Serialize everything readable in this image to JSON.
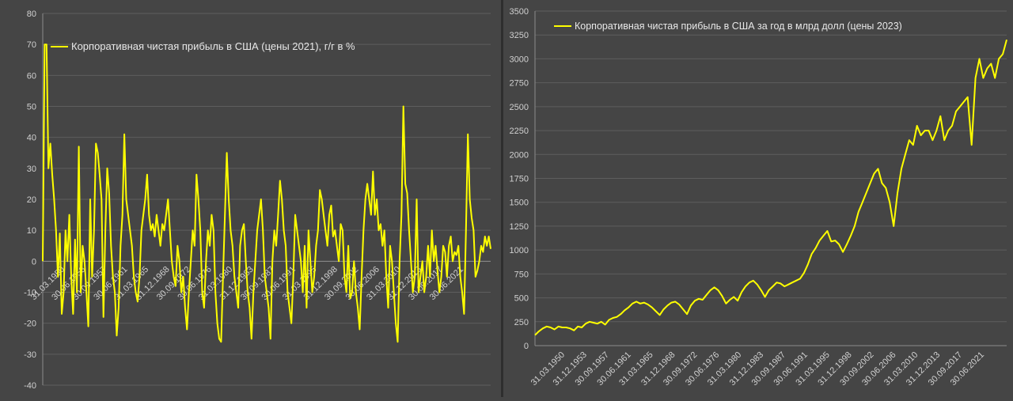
{
  "chart_data": [
    {
      "type": "line",
      "title": "",
      "legend": {
        "position": "top-left",
        "label": "Корпоративная чистая прибыль в США (цены 2021), г/г в %"
      },
      "ylim": [
        -40,
        80
      ],
      "yticks": [
        80,
        70,
        60,
        50,
        40,
        30,
        20,
        10,
        0,
        -10,
        -20,
        -30,
        -40
      ],
      "xtick_labels": [
        "31.03.1950",
        "30.06.1953",
        "30.09.1957",
        "30.06.1961",
        "31.03.1965",
        "31.12.1968",
        "30.09.1972",
        "30.06.1976",
        "31.03.1980",
        "31.12.1983",
        "30.09.1987",
        "30.06.1991",
        "31.03.1995",
        "31.12.1998",
        "30.09.2002",
        "30.06.2006",
        "31.03.2010",
        "31.12.2013",
        "30.09.2017",
        "30.06.2021"
      ],
      "color": "#ffff00",
      "series": [
        {
          "x_range": [
            1948,
            2024
          ],
          "values": [
            0,
            70,
            70,
            30,
            38,
            28,
            20,
            10,
            -5,
            9,
            -17,
            -10,
            10,
            0,
            15,
            -5,
            -17,
            7,
            -10,
            37,
            -10,
            5,
            0,
            -10,
            -21,
            20,
            -5,
            10,
            38,
            35,
            28,
            20,
            -18,
            10,
            30,
            22,
            5,
            -5,
            -10,
            -24,
            -15,
            5,
            15,
            41,
            20,
            15,
            10,
            5,
            -5,
            -10,
            -13,
            -5,
            10,
            15,
            20,
            28,
            15,
            10,
            12,
            8,
            15,
            10,
            5,
            12,
            10,
            15,
            20,
            10,
            0,
            -5,
            -8,
            5,
            0,
            -10,
            -5,
            -15,
            -22,
            -10,
            0,
            10,
            5,
            28,
            20,
            10,
            -10,
            -15,
            0,
            10,
            5,
            15,
            10,
            -10,
            -20,
            -25,
            -26,
            -5,
            15,
            35,
            20,
            10,
            5,
            -5,
            -10,
            -15,
            5,
            10,
            12,
            0,
            -10,
            -15,
            -25,
            -10,
            0,
            10,
            15,
            20,
            10,
            -5,
            -10,
            -15,
            -25,
            0,
            10,
            5,
            15,
            26,
            20,
            10,
            5,
            -10,
            -15,
            -20,
            -5,
            15,
            10,
            5,
            0,
            -10,
            5,
            -15,
            10,
            0,
            -10,
            -5,
            5,
            10,
            23,
            20,
            15,
            10,
            5,
            15,
            18,
            8,
            10,
            5,
            0,
            12,
            10,
            -5,
            -10,
            5,
            -12,
            -10,
            0,
            -10,
            -15,
            -22,
            -5,
            10,
            20,
            25,
            20,
            15,
            29,
            15,
            20,
            10,
            12,
            5,
            10,
            -5,
            -15,
            5,
            0,
            -10,
            -20,
            -26,
            0,
            15,
            50,
            25,
            22,
            10,
            0,
            -10,
            -5,
            20,
            -10,
            -5,
            0,
            -10,
            -5,
            5,
            -5,
            10,
            0,
            5,
            -3,
            -10,
            -5,
            5,
            3,
            -5,
            5,
            8,
            0,
            3,
            2,
            5,
            -5,
            -10,
            -17,
            10,
            41,
            20,
            14,
            10,
            -5,
            -3,
            0,
            5,
            3,
            8,
            5,
            8,
            4
          ]
        }
      ]
    },
    {
      "type": "line",
      "title": "",
      "legend": {
        "position": "top-left",
        "label": "Корпоративная чистая прибыль в США за год в млрд долл (цены 2023)"
      },
      "ylim": [
        0,
        3500
      ],
      "yticks": [
        3500,
        3250,
        3000,
        2750,
        2500,
        2250,
        2000,
        1750,
        1500,
        1250,
        1000,
        750,
        500,
        250,
        0
      ],
      "xtick_labels": [
        "31.03.1950",
        "31.12.1953",
        "30.09.1957",
        "30.06.1961",
        "31.03.1965",
        "31.12.1968",
        "30.09.1972",
        "30.06.1976",
        "31.03.1980",
        "31.12.1983",
        "30.09.1987",
        "30.06.1991",
        "31.03.1995",
        "31.12.1998",
        "30.09.2002",
        "30.06.2006",
        "31.03.2010",
        "31.12.2013",
        "30.09.2017",
        "30.06.2021"
      ],
      "color": "#ffff00",
      "series": [
        {
          "x_range": [
            1948,
            2024
          ],
          "values": [
            110,
            150,
            180,
            200,
            190,
            170,
            200,
            190,
            190,
            180,
            160,
            200,
            190,
            230,
            250,
            240,
            230,
            250,
            220,
            270,
            290,
            300,
            330,
            370,
            400,
            440,
            460,
            440,
            450,
            430,
            400,
            360,
            320,
            380,
            420,
            450,
            460,
            430,
            380,
            330,
            420,
            470,
            490,
            480,
            530,
            580,
            610,
            580,
            520,
            440,
            480,
            510,
            470,
            560,
            620,
            660,
            680,
            640,
            580,
            510,
            580,
            620,
            660,
            650,
            620,
            640,
            660,
            680,
            700,
            760,
            850,
            960,
            1020,
            1100,
            1150,
            1200,
            1090,
            1100,
            1060,
            980,
            1060,
            1150,
            1250,
            1400,
            1500,
            1600,
            1700,
            1800,
            1850,
            1700,
            1650,
            1500,
            1250,
            1600,
            1850,
            2000,
            2150,
            2100,
            2300,
            2200,
            2250,
            2250,
            2150,
            2250,
            2400,
            2150,
            2250,
            2300,
            2450,
            2500,
            2550,
            2600,
            2100,
            2800,
            3000,
            2800,
            2900,
            2950,
            2800,
            3000,
            3050,
            3200
          ]
        }
      ]
    }
  ]
}
